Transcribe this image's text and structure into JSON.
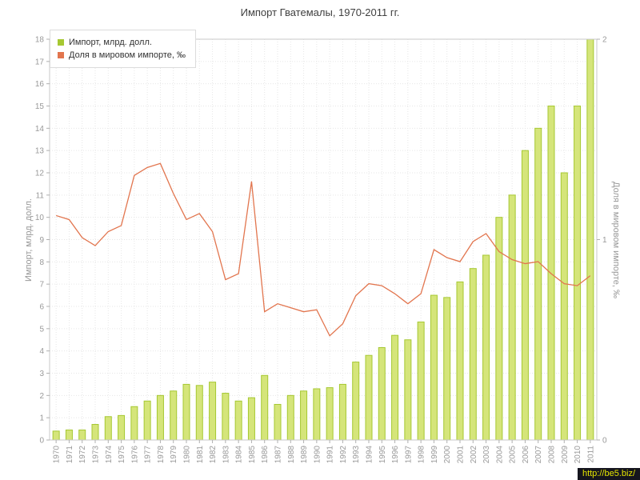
{
  "title": "Импорт Гватемалы, 1970-2011 гг.",
  "legend": {
    "items": [
      {
        "label": "Импорт, млрд. долл.",
        "color": "#a6c832"
      },
      {
        "label": "Доля в мировом импорте, ‰",
        "color": "#e2754e"
      }
    ]
  },
  "watermark": {
    "text": "http://be5.biz/"
  },
  "chart_data": {
    "type": "bar",
    "title": "Импорт Гватемалы, 1970-2011 гг.",
    "categories": [
      "1970",
      "1971",
      "1972",
      "1973",
      "1974",
      "1975",
      "1976",
      "1977",
      "1978",
      "1979",
      "1980",
      "1981",
      "1982",
      "1983",
      "1984",
      "1985",
      "1986",
      "1987",
      "1988",
      "1989",
      "1990",
      "1991",
      "1992",
      "1993",
      "1994",
      "1995",
      "1996",
      "1997",
      "1998",
      "1999",
      "2000",
      "2001",
      "2002",
      "2003",
      "2004",
      "2005",
      "2006",
      "2007",
      "2008",
      "2009",
      "2010",
      "2011"
    ],
    "series": [
      {
        "name": "Импорт, млрд. долл.",
        "type": "bar",
        "axis": "left",
        "fill": "#d5e57a",
        "stroke": "#a6c832",
        "values": [
          0.4,
          0.45,
          0.45,
          0.7,
          1.05,
          1.1,
          1.5,
          1.75,
          2.0,
          2.2,
          2.5,
          2.45,
          2.6,
          2.1,
          1.75,
          1.9,
          2.9,
          1.6,
          2.0,
          2.2,
          2.3,
          2.35,
          2.5,
          3.5,
          3.8,
          4.15,
          4.7,
          4.5,
          5.3,
          6.5,
          6.4,
          7.1,
          7.7,
          8.3,
          10.0,
          11.0,
          13.0,
          14.0,
          15.0,
          12.0,
          15.0,
          18.0
        ]
      },
      {
        "name": "Доля в мировом импорте, ‰",
        "type": "line",
        "axis": "right",
        "color": "#e2754e",
        "values": [
          1.12,
          1.1,
          1.01,
          0.97,
          1.04,
          1.07,
          1.32,
          1.36,
          1.38,
          1.23,
          1.1,
          1.13,
          1.04,
          0.8,
          0.83,
          1.29,
          0.64,
          0.68,
          0.66,
          0.64,
          0.65,
          0.52,
          0.58,
          0.72,
          0.78,
          0.77,
          0.73,
          0.68,
          0.73,
          0.95,
          0.91,
          0.89,
          0.99,
          1.03,
          0.94,
          0.9,
          0.88,
          0.89,
          0.83,
          0.78,
          0.77,
          0.82
        ]
      }
    ],
    "xlabel": "",
    "ylabel": "Импорт, млрд. долл.",
    "y2label": "Доля в мировом импорте, ‰",
    "ylim": [
      0,
      18
    ],
    "y2lim": [
      0,
      2
    ],
    "y_tick_step": 1,
    "y2_tick_step": 1,
    "grid": true,
    "legend_position": "top-left"
  }
}
